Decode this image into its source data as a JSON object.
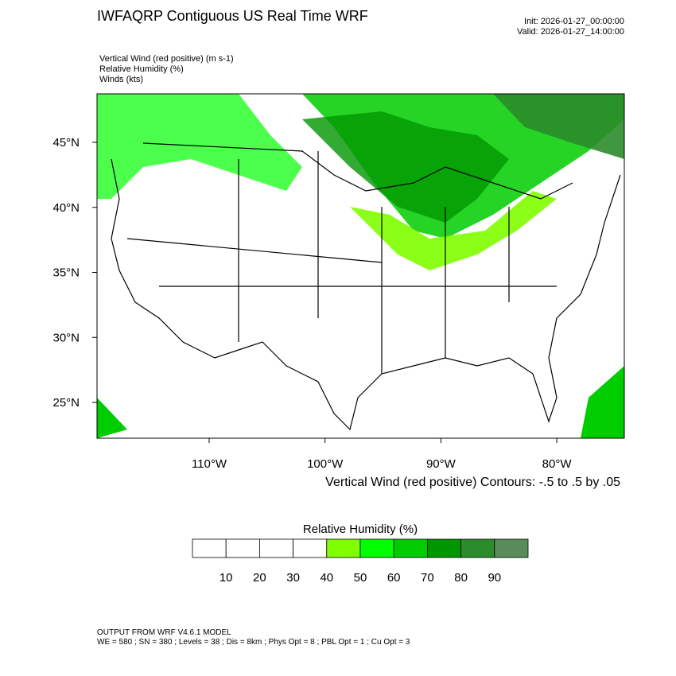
{
  "header": {
    "title": "IWFAQRP Contiguous US Real Time WRF",
    "init": "Init: 2026-01-27_00:00:00",
    "valid": "Valid: 2026-01-27_14:00:00",
    "fields": [
      "Vertical Wind (red positive)   (m s-1)",
      "Relative Humidity   (%)",
      "Winds   (kts)"
    ]
  },
  "map": {
    "lat_ticks": [
      {
        "value": 45,
        "label": "45°N"
      },
      {
        "value": 40,
        "label": "40°N"
      },
      {
        "value": 35,
        "label": "35°N"
      },
      {
        "value": 30,
        "label": "30°N"
      },
      {
        "value": 25,
        "label": "25°N"
      }
    ],
    "lon_ticks": [
      {
        "value": -110,
        "label": "110°W"
      },
      {
        "value": -100,
        "label": "100°W"
      },
      {
        "value": -90,
        "label": "90°W"
      },
      {
        "value": -80,
        "label": "80°W"
      }
    ],
    "contour_note": "Vertical Wind (red positive) Contours: -.5 to .5 by .05"
  },
  "colorbar": {
    "title": "Relative Humidity  (%)",
    "colors": [
      "#ffffff",
      "#ffffff",
      "#ffffff",
      "#ffffff",
      "#80ff00",
      "#00ff00",
      "#00cd00",
      "#009600",
      "#2a8c2a",
      "#5a8c5a"
    ],
    "labels": [
      10,
      20,
      30,
      40,
      50,
      60,
      70,
      80,
      90
    ]
  },
  "footer": {
    "line1": "OUTPUT FROM WRF V4.6.1 MODEL",
    "line2": "WE = 580 ; SN = 380 ; Levels = 38 ; Dis = 8km ; Phys Opt = 8 ; PBL Opt = 1 ; Cu Opt = 3"
  }
}
